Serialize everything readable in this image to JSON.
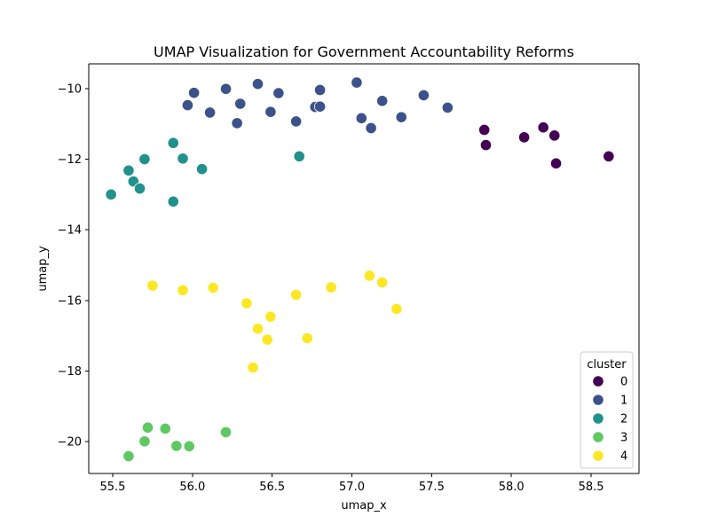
{
  "chart_data": {
    "type": "scatter",
    "title": "UMAP Visualization for Government Accountability Reforms",
    "xlabel": "umap_x",
    "ylabel": "umap_y",
    "xlim": [
      55.35,
      58.8
    ],
    "ylim": [
      -20.9,
      -9.3
    ],
    "xticks": [
      55.5,
      56.0,
      56.5,
      57.0,
      57.5,
      58.0,
      58.5
    ],
    "xtick_labels": [
      "55.5",
      "56.0",
      "56.5",
      "57.0",
      "57.5",
      "58.0",
      "58.5"
    ],
    "yticks": [
      -10,
      -12,
      -14,
      -16,
      -18,
      -20
    ],
    "ytick_labels": [
      "−10",
      "−12",
      "−14",
      "−16",
      "−18",
      "−20"
    ],
    "legend": {
      "title": "cluster",
      "placement": "lower-right"
    },
    "grid": false,
    "series": [
      {
        "name": "0",
        "color": "#440154",
        "points": [
          [
            57.83,
            -11.17
          ],
          [
            57.84,
            -11.6
          ],
          [
            58.08,
            -11.38
          ],
          [
            58.2,
            -11.1
          ],
          [
            58.27,
            -11.33
          ],
          [
            58.28,
            -12.12
          ],
          [
            58.61,
            -11.92
          ]
        ]
      },
      {
        "name": "1",
        "color": "#3b528b",
        "points": [
          [
            55.97,
            -10.47
          ],
          [
            56.01,
            -10.12
          ],
          [
            56.11,
            -10.68
          ],
          [
            56.21,
            -10.01
          ],
          [
            56.28,
            -10.98
          ],
          [
            56.3,
            -10.43
          ],
          [
            56.41,
            -9.87
          ],
          [
            56.49,
            -10.66
          ],
          [
            56.54,
            -10.13
          ],
          [
            56.65,
            -10.93
          ],
          [
            56.77,
            -10.52
          ],
          [
            56.8,
            -10.04
          ],
          [
            56.8,
            -10.51
          ],
          [
            57.03,
            -9.83
          ],
          [
            57.06,
            -10.84
          ],
          [
            57.12,
            -11.12
          ],
          [
            57.19,
            -10.35
          ],
          [
            57.31,
            -10.81
          ],
          [
            57.45,
            -10.19
          ],
          [
            57.6,
            -10.54
          ]
        ]
      },
      {
        "name": "2",
        "color": "#21918c",
        "points": [
          [
            55.49,
            -13.0
          ],
          [
            55.6,
            -12.32
          ],
          [
            55.63,
            -12.63
          ],
          [
            55.67,
            -12.83
          ],
          [
            55.7,
            -12.0
          ],
          [
            55.88,
            -11.54
          ],
          [
            55.88,
            -13.2
          ],
          [
            55.94,
            -11.98
          ],
          [
            56.06,
            -12.28
          ],
          [
            56.67,
            -11.92
          ]
        ]
      },
      {
        "name": "3",
        "color": "#5ec962",
        "points": [
          [
            55.6,
            -20.41
          ],
          [
            55.7,
            -19.99
          ],
          [
            55.72,
            -19.6
          ],
          [
            55.83,
            -19.63
          ],
          [
            55.9,
            -20.12
          ],
          [
            55.98,
            -20.13
          ],
          [
            56.21,
            -19.73
          ]
        ]
      },
      {
        "name": "4",
        "color": "#fde725",
        "points": [
          [
            55.75,
            -15.58
          ],
          [
            55.94,
            -15.71
          ],
          [
            56.13,
            -15.64
          ],
          [
            56.34,
            -16.08
          ],
          [
            56.38,
            -17.9
          ],
          [
            56.41,
            -16.8
          ],
          [
            56.47,
            -17.11
          ],
          [
            56.49,
            -16.46
          ],
          [
            56.65,
            -15.84
          ],
          [
            56.72,
            -17.07
          ],
          [
            56.87,
            -15.63
          ],
          [
            57.11,
            -15.3
          ],
          [
            57.19,
            -15.49
          ],
          [
            57.28,
            -16.24
          ]
        ]
      }
    ]
  }
}
